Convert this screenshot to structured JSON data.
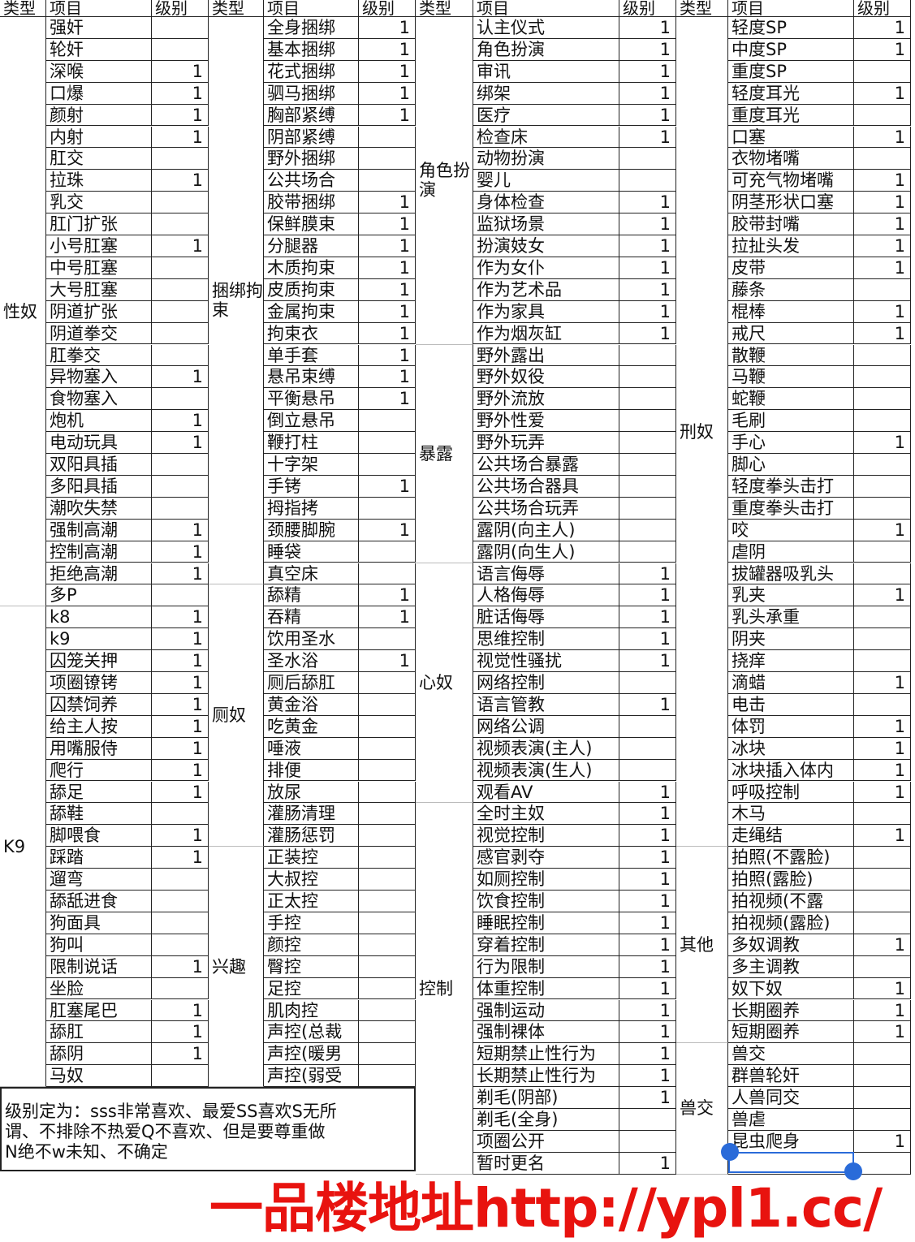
{
  "headers": {
    "type": "类型",
    "item": "项目",
    "level": "级别"
  },
  "columns": [
    [
      {
        "type": "性奴",
        "items": [
          [
            "强奸",
            ""
          ],
          [
            "轮奸",
            ""
          ],
          [
            "深喉",
            "1"
          ],
          [
            "口爆",
            "1"
          ],
          [
            "颜射",
            "1"
          ],
          [
            "内射",
            "1"
          ],
          [
            "肛交",
            ""
          ],
          [
            "拉珠",
            "1"
          ],
          [
            "乳交",
            ""
          ],
          [
            "肛门扩张",
            ""
          ],
          [
            "小号肛塞",
            "1"
          ],
          [
            "中号肛塞",
            ""
          ],
          [
            "大号肛塞",
            ""
          ],
          [
            "阴道扩张",
            ""
          ],
          [
            "阴道拳交",
            ""
          ],
          [
            "肛拳交",
            ""
          ],
          [
            "异物塞入",
            "1"
          ],
          [
            "食物塞入",
            ""
          ],
          [
            "炮机",
            "1"
          ],
          [
            "电动玩具",
            "1"
          ],
          [
            "双阳具插",
            ""
          ],
          [
            "多阳具插",
            ""
          ],
          [
            "潮吹失禁",
            ""
          ],
          [
            "强制高潮",
            "1"
          ],
          [
            "控制高潮",
            "1"
          ],
          [
            "拒绝高潮",
            "1"
          ],
          [
            "多P",
            ""
          ]
        ]
      },
      {
        "type": "K9",
        "items": [
          [
            "k8",
            "1"
          ],
          [
            "k9",
            "1"
          ],
          [
            "囚笼关押",
            "1"
          ],
          [
            "项圈镣铐",
            "1"
          ],
          [
            "囚禁饲养",
            "1"
          ],
          [
            "给主人按",
            "1"
          ],
          [
            "用嘴服侍",
            "1"
          ],
          [
            "爬行",
            "1"
          ],
          [
            "舔足",
            "1"
          ],
          [
            "舔鞋",
            ""
          ],
          [
            "脚喂食",
            "1"
          ],
          [
            "踩踏",
            "1"
          ],
          [
            "遛弯",
            ""
          ],
          [
            "舔舐进食",
            ""
          ],
          [
            "狗面具",
            ""
          ],
          [
            "狗叫",
            ""
          ],
          [
            "限制说话",
            "1"
          ],
          [
            "坐脸",
            ""
          ],
          [
            "肛塞尾巴",
            "1"
          ],
          [
            "舔肛",
            "1"
          ],
          [
            "舔阴",
            "1"
          ],
          [
            "马奴",
            ""
          ]
        ]
      }
    ],
    [
      {
        "type": "捆绑拘束",
        "items": [
          [
            "全身捆绑",
            "1"
          ],
          [
            "基本捆绑",
            "1"
          ],
          [
            "花式捆绑",
            "1"
          ],
          [
            "驷马捆绑",
            "1"
          ],
          [
            "胸部紧缚",
            "1"
          ],
          [
            "阴部紧缚",
            ""
          ],
          [
            "野外捆绑",
            ""
          ],
          [
            "公共场合",
            ""
          ],
          [
            "胶带捆绑",
            "1"
          ],
          [
            "保鲜膜束",
            "1"
          ],
          [
            "分腿器",
            "1"
          ],
          [
            "木质拘束",
            "1"
          ],
          [
            "皮质拘束",
            "1"
          ],
          [
            "金属拘束",
            "1"
          ],
          [
            "拘束衣",
            "1"
          ],
          [
            "单手套",
            "1"
          ],
          [
            "悬吊束缚",
            "1"
          ],
          [
            "平衡悬吊",
            "1"
          ],
          [
            "倒立悬吊",
            ""
          ],
          [
            "鞭打柱",
            ""
          ],
          [
            "十字架",
            ""
          ],
          [
            "手铐",
            "1"
          ],
          [
            "拇指拷",
            ""
          ],
          [
            "颈腰脚腕",
            "1"
          ],
          [
            "睡袋",
            ""
          ],
          [
            "真空床",
            ""
          ]
        ]
      },
      {
        "type": "厕奴",
        "items": [
          [
            "舔精",
            "1"
          ],
          [
            "吞精",
            "1"
          ],
          [
            "饮用圣水",
            ""
          ],
          [
            "圣水浴",
            "1"
          ],
          [
            "厕后舔肛",
            ""
          ],
          [
            "黄金浴",
            ""
          ],
          [
            "吃黄金",
            ""
          ],
          [
            "唾液",
            ""
          ],
          [
            "排便",
            ""
          ],
          [
            "放尿",
            ""
          ],
          [
            "灌肠清理",
            ""
          ],
          [
            "灌肠惩罚",
            ""
          ]
        ]
      },
      {
        "type": "兴趣",
        "items": [
          [
            "正装控",
            ""
          ],
          [
            "大叔控",
            ""
          ],
          [
            "正太控",
            ""
          ],
          [
            "手控",
            ""
          ],
          [
            "颜控",
            ""
          ],
          [
            "臀控",
            ""
          ],
          [
            "足控",
            ""
          ],
          [
            "肌肉控",
            ""
          ],
          [
            "声控(总裁",
            ""
          ],
          [
            "声控(暖男",
            ""
          ],
          [
            "声控(弱受",
            ""
          ]
        ]
      }
    ],
    [
      {
        "type": "角色扮演",
        "items": [
          [
            "认主仪式",
            "1"
          ],
          [
            "角色扮演",
            "1"
          ],
          [
            "审讯",
            "1"
          ],
          [
            "绑架",
            "1"
          ],
          [
            "医疗",
            "1"
          ],
          [
            "检查床",
            "1"
          ],
          [
            "动物扮演",
            ""
          ],
          [
            "婴儿",
            ""
          ],
          [
            "身体检查",
            "1"
          ],
          [
            "监狱场景",
            "1"
          ],
          [
            "扮演妓女",
            "1"
          ],
          [
            "作为女仆",
            "1"
          ],
          [
            "作为艺术品",
            "1"
          ],
          [
            "作为家具",
            "1"
          ],
          [
            "作为烟灰缸",
            "1"
          ]
        ]
      },
      {
        "type": "暴露",
        "items": [
          [
            "野外露出",
            ""
          ],
          [
            "野外奴役",
            ""
          ],
          [
            "野外流放",
            ""
          ],
          [
            "野外性爱",
            ""
          ],
          [
            "野外玩弄",
            ""
          ],
          [
            "公共场合暴露",
            ""
          ],
          [
            "公共场合器具",
            ""
          ],
          [
            "公共场合玩弄",
            ""
          ],
          [
            "露阴(向主人)",
            ""
          ],
          [
            "露阴(向生人)",
            ""
          ]
        ]
      },
      {
        "type": "心奴",
        "items": [
          [
            "语言侮辱",
            "1"
          ],
          [
            "人格侮辱",
            "1"
          ],
          [
            "脏话侮辱",
            "1"
          ],
          [
            "思维控制",
            "1"
          ],
          [
            "视觉性骚扰",
            "1"
          ],
          [
            "网络控制",
            ""
          ],
          [
            "语言管教",
            "1"
          ],
          [
            "网络公调",
            ""
          ],
          [
            "视频表演(主人)",
            ""
          ],
          [
            "视频表演(生人)",
            ""
          ],
          [
            "观看AV",
            "1"
          ]
        ]
      },
      {
        "type": "控制",
        "items": [
          [
            "全时主奴",
            "1"
          ],
          [
            "视觉控制",
            "1"
          ],
          [
            "感官剥夺",
            "1"
          ],
          [
            "如厕控制",
            "1"
          ],
          [
            "饮食控制",
            "1"
          ],
          [
            "睡眠控制",
            "1"
          ],
          [
            "穿着控制",
            "1"
          ],
          [
            "行为限制",
            "1"
          ],
          [
            "体重控制",
            "1"
          ],
          [
            "强制运动",
            "1"
          ],
          [
            "强制裸体",
            "1"
          ],
          [
            "短期禁止性行为",
            "1"
          ],
          [
            "长期禁止性行为",
            "1"
          ],
          [
            "剃毛(阴部)",
            "1"
          ],
          [
            "剃毛(全身)",
            ""
          ],
          [
            "项圈公开",
            ""
          ],
          [
            "暂时更名",
            "1"
          ]
        ]
      }
    ],
    [
      {
        "type": "刑奴",
        "items": [
          [
            "轻度SP",
            "1"
          ],
          [
            "中度SP",
            "1"
          ],
          [
            "重度SP",
            ""
          ],
          [
            "轻度耳光",
            "1"
          ],
          [
            "重度耳光",
            ""
          ],
          [
            "口塞",
            "1"
          ],
          [
            "衣物堵嘴",
            ""
          ],
          [
            "可充气物堵嘴",
            "1"
          ],
          [
            "阴茎形状口塞",
            "1"
          ],
          [
            "胶带封嘴",
            "1"
          ],
          [
            "拉扯头发",
            "1"
          ],
          [
            "皮带",
            "1"
          ],
          [
            "藤条",
            ""
          ],
          [
            "棍棒",
            "1"
          ],
          [
            "戒尺",
            "1"
          ],
          [
            "散鞭",
            ""
          ],
          [
            "马鞭",
            ""
          ],
          [
            "蛇鞭",
            ""
          ],
          [
            "毛刷",
            ""
          ],
          [
            "手心",
            "1"
          ],
          [
            "脚心",
            ""
          ],
          [
            "轻度拳头击打",
            ""
          ],
          [
            "重度拳头击打",
            ""
          ],
          [
            "咬",
            "1"
          ],
          [
            "虐阴",
            ""
          ],
          [
            "拔罐器吸乳头",
            ""
          ],
          [
            "乳夹",
            "1"
          ],
          [
            "乳头承重",
            ""
          ],
          [
            "阴夹",
            ""
          ],
          [
            "挠痒",
            ""
          ],
          [
            "滴蜡",
            "1"
          ],
          [
            "电击",
            ""
          ],
          [
            "体罚",
            "1"
          ],
          [
            "冰块",
            "1"
          ],
          [
            "冰块插入体内",
            "1"
          ],
          [
            "呼吸控制",
            "1"
          ],
          [
            "木马",
            ""
          ],
          [
            "走绳结",
            "1"
          ]
        ]
      },
      {
        "type": "其他",
        "items": [
          [
            "拍照(不露脸)",
            ""
          ],
          [
            "拍照(露脸)",
            ""
          ],
          [
            "拍视频(不露",
            ""
          ],
          [
            "拍视频(露脸)",
            ""
          ],
          [
            "多奴调教",
            "1"
          ],
          [
            "多主调教",
            ""
          ],
          [
            "奴下奴",
            "1"
          ],
          [
            "长期圈养",
            "1"
          ],
          [
            "短期圈养",
            "1"
          ]
        ]
      },
      {
        "type": "兽交",
        "items": [
          [
            "兽交",
            ""
          ],
          [
            "群兽轮奸",
            ""
          ],
          [
            "人兽同交",
            ""
          ],
          [
            "兽虐",
            ""
          ],
          [
            "昆虫爬身",
            "1"
          ],
          [
            "",
            ""
          ]
        ]
      }
    ]
  ],
  "note": {
    "line1": "级别定为：sss非常喜欢、最爱SS喜欢S无所",
    "line2": "谓、不排除不热爱Q不喜欢、但是要尊重做",
    "line3": "N绝不w未知、不确定"
  },
  "watermark": "一品楼地址http://ypl1.cc/",
  "colors": {
    "watermark": "#e8130f",
    "selection": "#2a6bd9"
  }
}
